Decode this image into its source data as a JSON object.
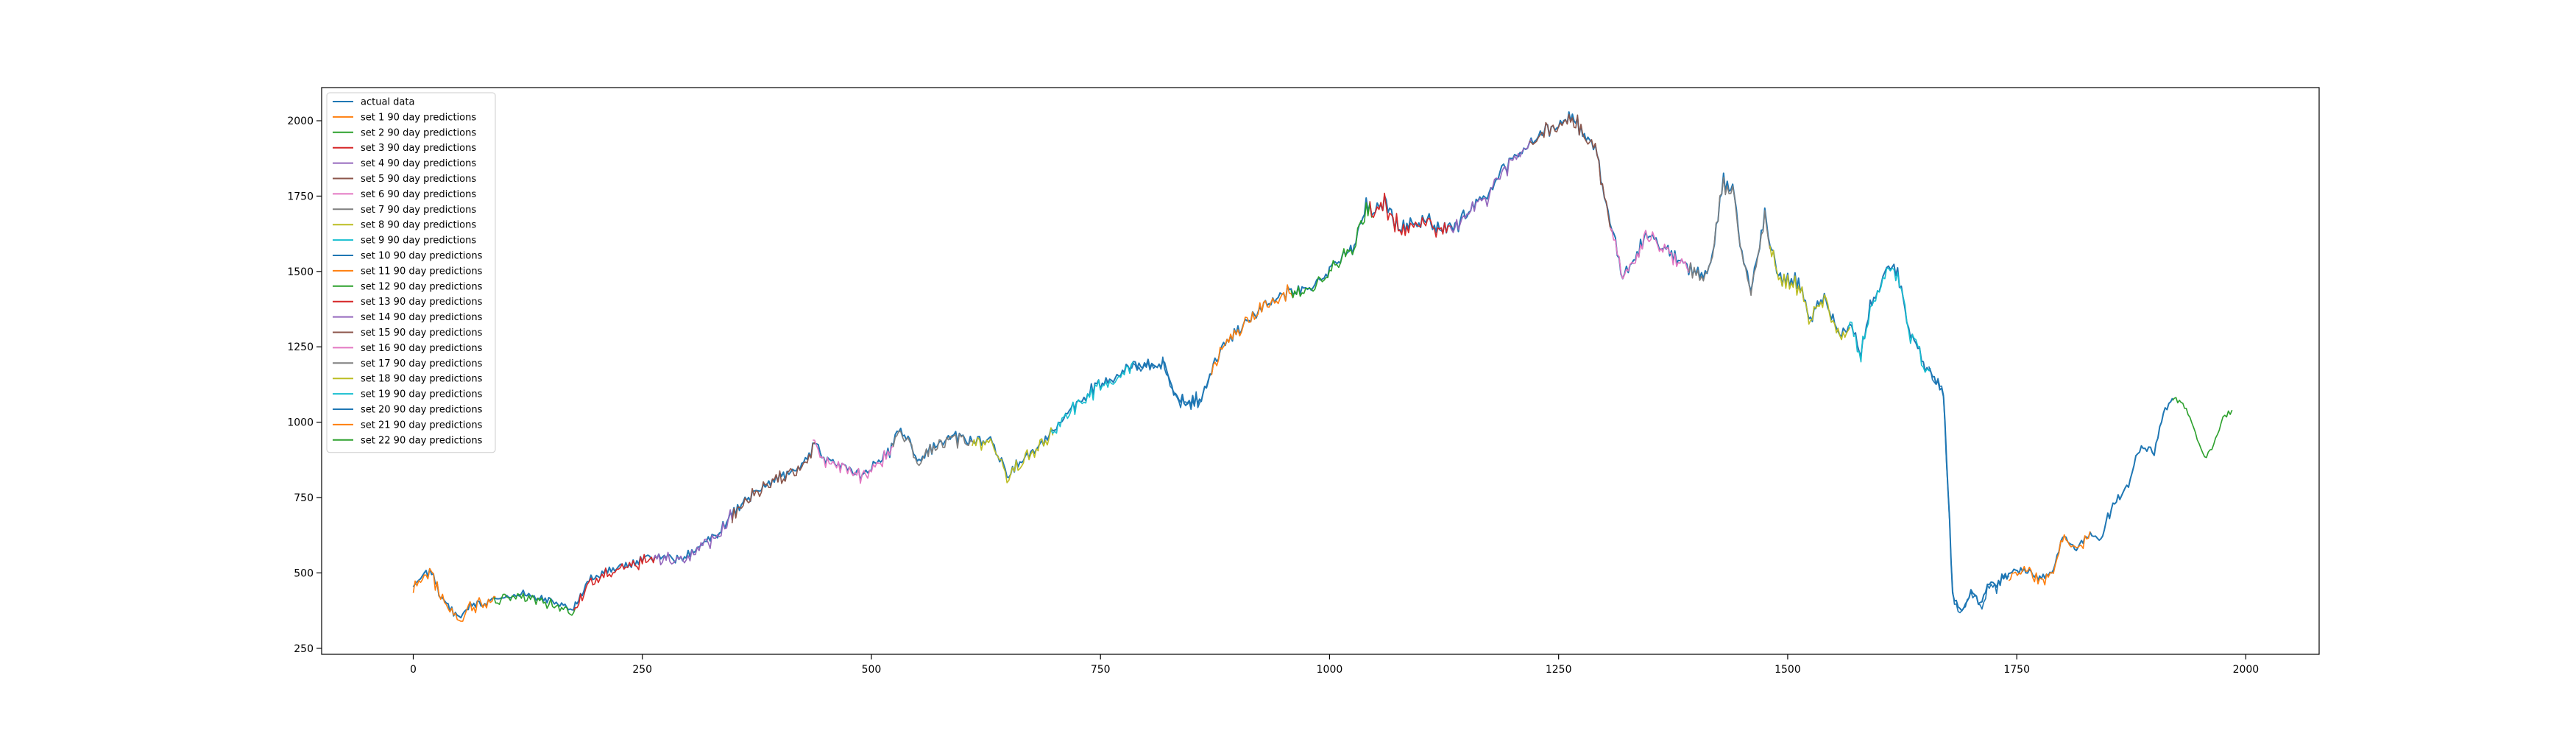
{
  "chart_data": {
    "type": "line",
    "title": "",
    "xlabel": "",
    "ylabel": "",
    "xlim": [
      -100,
      2080
    ],
    "ylim": [
      230,
      2110
    ],
    "x_ticks": [
      0,
      250,
      500,
      750,
      1000,
      1250,
      1500,
      1750,
      2000
    ],
    "y_ticks": [
      250,
      500,
      750,
      1000,
      1250,
      1500,
      1750,
      2000
    ],
    "x_tick_labels": [
      "0",
      "250",
      "500",
      "750",
      "1000",
      "1250",
      "1500",
      "1750",
      "2000"
    ],
    "y_tick_labels": [
      "250",
      "500",
      "750",
      "1000",
      "1250",
      "1500",
      "1750",
      "2000"
    ],
    "grid": false,
    "legend_position": "top-left",
    "actual": {
      "name": "actual data",
      "color": "#1f77b4",
      "points": [
        [
          0,
          465
        ],
        [
          10,
          490
        ],
        [
          20,
          505
        ],
        [
          30,
          420
        ],
        [
          40,
          380
        ],
        [
          50,
          355
        ],
        [
          60,
          390
        ],
        [
          80,
          400
        ],
        [
          100,
          425
        ],
        [
          120,
          430
        ],
        [
          140,
          420
        ],
        [
          160,
          390
        ],
        [
          175,
          380
        ],
        [
          190,
          470
        ],
        [
          210,
          505
        ],
        [
          230,
          520
        ],
        [
          250,
          545
        ],
        [
          270,
          560
        ],
        [
          290,
          545
        ],
        [
          310,
          580
        ],
        [
          330,
          625
        ],
        [
          350,
          700
        ],
        [
          370,
          760
        ],
        [
          390,
          800
        ],
        [
          410,
          830
        ],
        [
          430,
          880
        ],
        [
          440,
          930
        ],
        [
          450,
          870
        ],
        [
          470,
          855
        ],
        [
          490,
          820
        ],
        [
          500,
          850
        ],
        [
          520,
          900
        ],
        [
          530,
          975
        ],
        [
          540,
          940
        ],
        [
          550,
          880
        ],
        [
          570,
          920
        ],
        [
          590,
          955
        ],
        [
          610,
          935
        ],
        [
          630,
          940
        ],
        [
          640,
          885
        ],
        [
          650,
          820
        ],
        [
          660,
          870
        ],
        [
          680,
          905
        ],
        [
          700,
          980
        ],
        [
          720,
          1055
        ],
        [
          740,
          1110
        ],
        [
          760,
          1140
        ],
        [
          780,
          1180
        ],
        [
          800,
          1200
        ],
        [
          820,
          1190
        ],
        [
          830,
          1100
        ],
        [
          845,
          1060
        ],
        [
          860,
          1080
        ],
        [
          875,
          1200
        ],
        [
          890,
          1280
        ],
        [
          910,
          1330
        ],
        [
          930,
          1390
        ],
        [
          950,
          1430
        ],
        [
          970,
          1430
        ],
        [
          990,
          1480
        ],
        [
          1010,
          1530
        ],
        [
          1025,
          1580
        ],
        [
          1040,
          1720
        ],
        [
          1050,
          1700
        ],
        [
          1060,
          1740
        ],
        [
          1075,
          1640
        ],
        [
          1090,
          1660
        ],
        [
          1105,
          1680
        ],
        [
          1120,
          1650
        ],
        [
          1135,
          1640
        ],
        [
          1150,
          1700
        ],
        [
          1170,
          1740
        ],
        [
          1190,
          1850
        ],
        [
          1210,
          1900
        ],
        [
          1230,
          1960
        ],
        [
          1250,
          1985
        ],
        [
          1265,
          2010
        ],
        [
          1280,
          1960
        ],
        [
          1290,
          1900
        ],
        [
          1300,
          1760
        ],
        [
          1310,
          1620
        ],
        [
          1320,
          1470
        ],
        [
          1330,
          1530
        ],
        [
          1345,
          1620
        ],
        [
          1360,
          1580
        ],
        [
          1375,
          1560
        ],
        [
          1390,
          1510
        ],
        [
          1410,
          1490
        ],
        [
          1420,
          1590
        ],
        [
          1430,
          1800
        ],
        [
          1440,
          1780
        ],
        [
          1450,
          1560
        ],
        [
          1460,
          1440
        ],
        [
          1475,
          1680
        ],
        [
          1490,
          1480
        ],
        [
          1510,
          1470
        ],
        [
          1525,
          1350
        ],
        [
          1540,
          1420
        ],
        [
          1555,
          1290
        ],
        [
          1570,
          1330
        ],
        [
          1580,
          1220
        ],
        [
          1590,
          1380
        ],
        [
          1600,
          1450
        ],
        [
          1610,
          1510
        ],
        [
          1620,
          1500
        ],
        [
          1630,
          1330
        ],
        [
          1640,
          1250
        ],
        [
          1650,
          1190
        ],
        [
          1660,
          1150
        ],
        [
          1670,
          1100
        ],
        [
          1675,
          780
        ],
        [
          1680,
          420
        ],
        [
          1690,
          380
        ],
        [
          1700,
          440
        ],
        [
          1710,
          400
        ],
        [
          1720,
          460
        ],
        [
          1730,
          470
        ],
        [
          1745,
          500
        ],
        [
          1760,
          510
        ],
        [
          1775,
          480
        ],
        [
          1790,
          510
        ],
        [
          1800,
          620
        ],
        [
          1815,
          580
        ],
        [
          1830,
          630
        ],
        [
          1840,
          600
        ],
        [
          1855,
          730
        ],
        [
          1870,
          780
        ],
        [
          1880,
          880
        ],
        [
          1890,
          920
        ],
        [
          1900,
          900
        ],
        [
          1910,
          1030
        ],
        [
          1920,
          1080
        ]
      ]
    },
    "predictions": [
      {
        "name": "set 1 90 day predictions",
        "color": "#ff7f0e"
      },
      {
        "name": "set 2 90 day predictions",
        "color": "#2ca02c"
      },
      {
        "name": "set 3 90 day predictions",
        "color": "#d62728"
      },
      {
        "name": "set 4 90 day predictions",
        "color": "#9467bd"
      },
      {
        "name": "set 5 90 day predictions",
        "color": "#8c564b"
      },
      {
        "name": "set 6 90 day predictions",
        "color": "#e377c2"
      },
      {
        "name": "set 7 90 day predictions",
        "color": "#7f7f7f"
      },
      {
        "name": "set 8 90 day predictions",
        "color": "#bcbd22"
      },
      {
        "name": "set 9 90 day predictions",
        "color": "#17becf"
      },
      {
        "name": "set 10 90 day predictions",
        "color": "#1f77b4"
      },
      {
        "name": "set 11 90 day predictions",
        "color": "#ff7f0e"
      },
      {
        "name": "set 12 90 day predictions",
        "color": "#2ca02c"
      },
      {
        "name": "set 13 90 day predictions",
        "color": "#d62728"
      },
      {
        "name": "set 14 90 day predictions",
        "color": "#9467bd"
      },
      {
        "name": "set 15 90 day predictions",
        "color": "#8c564b"
      },
      {
        "name": "set 16 90 day predictions",
        "color": "#e377c2"
      },
      {
        "name": "set 17 90 day predictions",
        "color": "#7f7f7f"
      },
      {
        "name": "set 18 90 day predictions",
        "color": "#bcbd22"
      },
      {
        "name": "set 19 90 day predictions",
        "color": "#17becf"
      },
      {
        "name": "set 20 90 day predictions",
        "color": "#1f77b4"
      },
      {
        "name": "set 21 90 day predictions",
        "color": "#ff7f0e"
      },
      {
        "name": "set 22 90 day predictions",
        "color": "#2ca02c",
        "points": [
          [
            1920,
            1080
          ],
          [
            1935,
            1050
          ],
          [
            1945,
            960
          ],
          [
            1955,
            880
          ],
          [
            1965,
            920
          ],
          [
            1975,
            1020
          ],
          [
            1985,
            1040
          ]
        ]
      }
    ]
  }
}
